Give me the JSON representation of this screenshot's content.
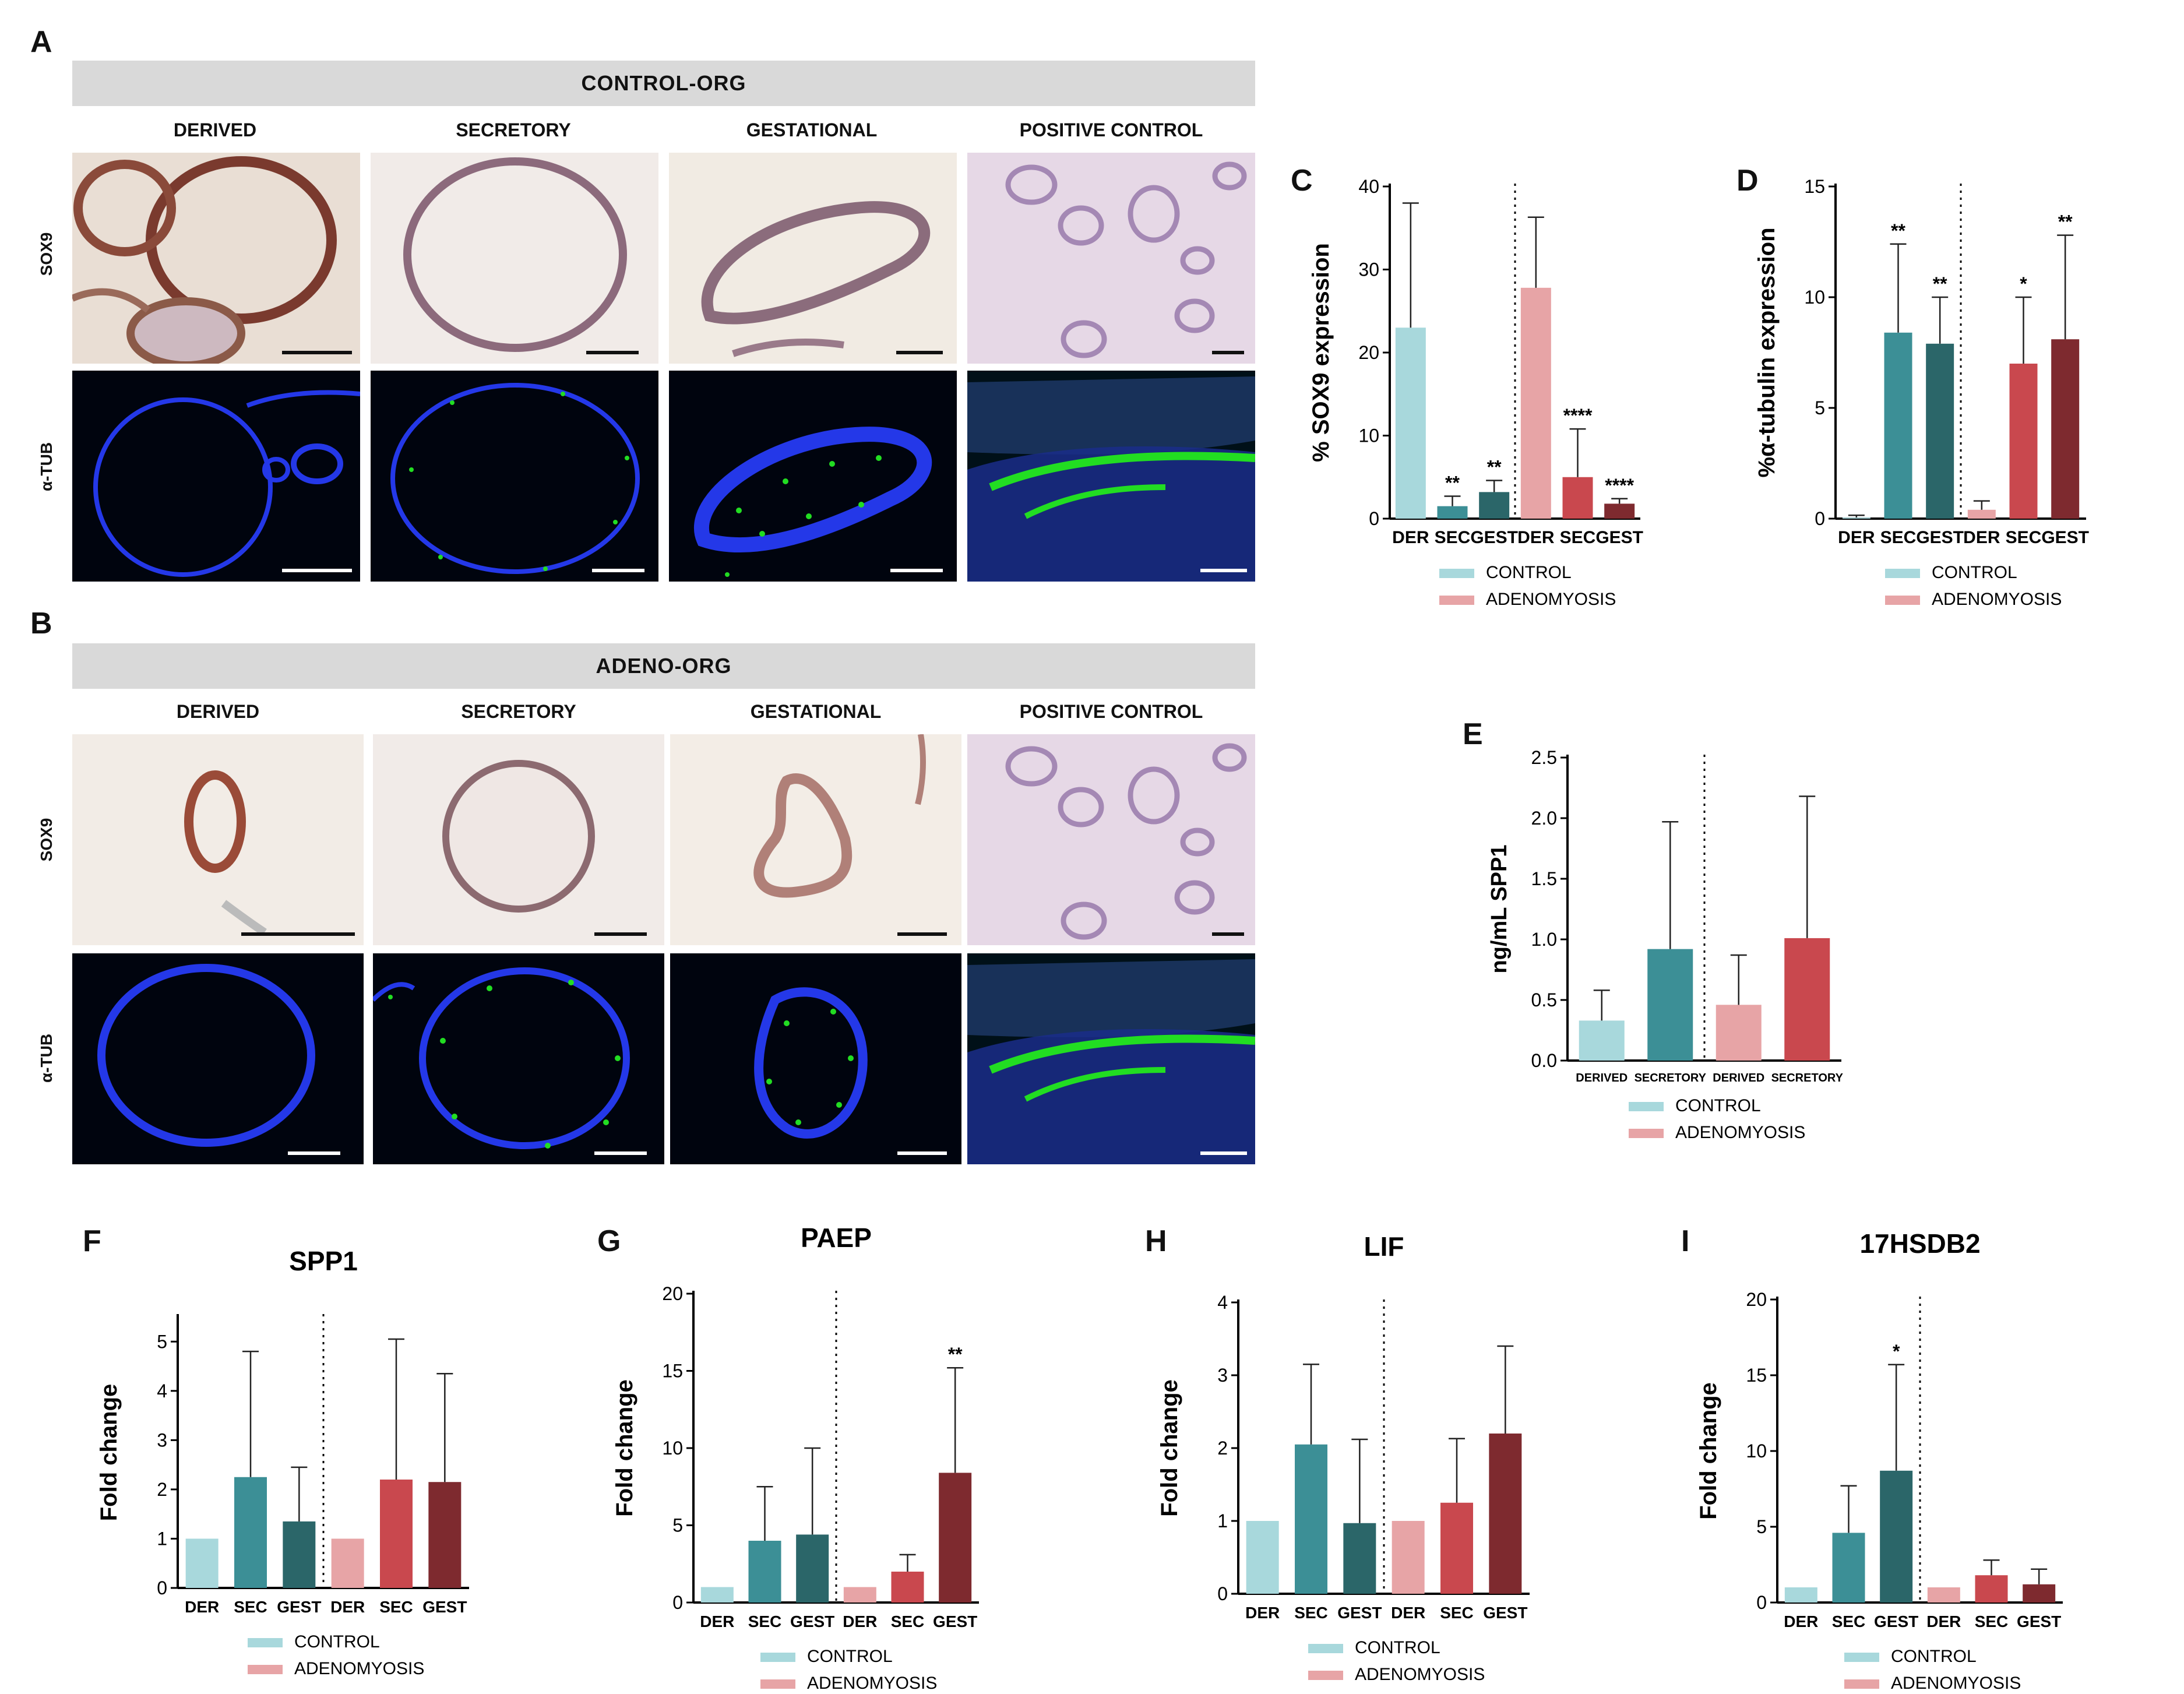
{
  "panels": {
    "A": "A",
    "B": "B",
    "C": "C",
    "D": "D",
    "E": "E",
    "F": "F",
    "G": "G",
    "H": "H",
    "I": "I"
  },
  "micro": {
    "control_banner": "CONTROL-ORG",
    "adeno_banner": "ADENO-ORG",
    "columns": [
      "DERIVED",
      "SECRETORY",
      "GESTATIONAL",
      "POSITIVE CONTROL"
    ],
    "row_sox9": "SOX9",
    "row_atub": "α-TUB"
  },
  "legend": {
    "control": "CONTROL",
    "adenomyosis": "ADENOMYOSIS"
  },
  "colors": {
    "control": [
      "#a8d8dc",
      "#3c8f96",
      "#2b6669"
    ],
    "adeno": [
      "#e7a4a6",
      "#c9484e",
      "#7e2a2f"
    ],
    "ihc_bg": "#e8ddd4",
    "if_bg": "#000814",
    "dapi": "#2233ee",
    "tub": "#22dd22"
  },
  "chart_data": [
    {
      "id": "C",
      "type": "bar",
      "categories": [
        "DER",
        "SEC",
        "GEST",
        "DER",
        "SEC",
        "GEST"
      ],
      "values": [
        23,
        1.5,
        3.2,
        27.8,
        5,
        1.8
      ],
      "errors": [
        15,
        1.2,
        1.4,
        8.5,
        5.8,
        0.6
      ],
      "sig": [
        "",
        "**",
        "**",
        "",
        "****",
        "****"
      ],
      "ylabel": "% SOX9 expression",
      "ylim": [
        0,
        40
      ],
      "yticks": [
        0,
        10,
        20,
        30,
        40
      ],
      "divider_after": 3
    },
    {
      "id": "D",
      "type": "bar",
      "categories": [
        "DER",
        "SEC",
        "GEST",
        "DER",
        "SEC",
        "GEST"
      ],
      "values": [
        0.05,
        8.4,
        7.9,
        0.4,
        7,
        8.1
      ],
      "errors": [
        0.1,
        4,
        2.1,
        0.4,
        3,
        4.7
      ],
      "sig": [
        "",
        "**",
        "**",
        "",
        "*",
        "**"
      ],
      "ylabel": "%α-tubulin expression",
      "ylim": [
        0,
        15
      ],
      "yticks": [
        0,
        5,
        10,
        15
      ],
      "divider_after": 3
    },
    {
      "id": "E",
      "type": "bar",
      "categories": [
        "DERIVED",
        "SECRETORY",
        "DERIVED",
        "SECRETORY"
      ],
      "values": [
        0.33,
        0.92,
        0.46,
        1.01
      ],
      "errors": [
        0.25,
        1.05,
        0.41,
        1.17
      ],
      "sig": [
        "",
        "",
        "",
        ""
      ],
      "ylabel": "ng/mL SPP1",
      "ylim": [
        0,
        2.5
      ],
      "yticks": [
        "0.0",
        "0.5",
        "1.0",
        "1.5",
        "2.0",
        "2.5"
      ],
      "divider_after": 2
    },
    {
      "id": "F",
      "type": "bar",
      "title": "SPP1",
      "categories": [
        "DER",
        "SEC",
        "GEST",
        "DER",
        "SEC",
        "GEST"
      ],
      "values": [
        1,
        2.25,
        1.35,
        1,
        2.2,
        2.15
      ],
      "errors": [
        0,
        2.55,
        1.1,
        0,
        2.85,
        2.2
      ],
      "sig": [
        "",
        "",
        "",
        "",
        "",
        ""
      ],
      "ylabel": "Fold change",
      "ylim": [
        0,
        5.5
      ],
      "yticks": [
        0,
        1,
        2,
        3,
        4,
        5
      ],
      "divider_after": 3
    },
    {
      "id": "G",
      "type": "bar",
      "title": "PAEP",
      "categories": [
        "DER",
        "SEC",
        "GEST",
        "DER",
        "SEC",
        "GEST"
      ],
      "values": [
        1,
        4,
        4.4,
        1,
        2,
        8.4
      ],
      "errors": [
        0,
        3.5,
        5.6,
        0,
        1.1,
        6.8
      ],
      "sig": [
        "",
        "",
        "",
        "",
        "",
        "**"
      ],
      "ylabel": "Fold change",
      "ylim": [
        0,
        20
      ],
      "yticks": [
        0,
        5,
        10,
        15,
        20
      ],
      "divider_after": 3
    },
    {
      "id": "H",
      "type": "bar",
      "title": "LIF",
      "categories": [
        "DER",
        "SEC",
        "GEST",
        "DER",
        "SEC",
        "GEST"
      ],
      "values": [
        1,
        2.05,
        0.97,
        1,
        1.25,
        2.2
      ],
      "errors": [
        0,
        1.1,
        1.15,
        0,
        0.88,
        1.2
      ],
      "sig": [
        "",
        "",
        "",
        "",
        "",
        ""
      ],
      "ylabel": "Fold change",
      "ylim": [
        0,
        4
      ],
      "yticks": [
        0,
        1,
        2,
        3,
        4
      ],
      "divider_after": 3
    },
    {
      "id": "I",
      "type": "bar",
      "title": "17HSDB2",
      "categories": [
        "DER",
        "SEC",
        "GEST",
        "DER",
        "SEC",
        "GEST"
      ],
      "values": [
        1,
        4.6,
        8.7,
        1,
        1.8,
        1.2
      ],
      "errors": [
        0,
        3.1,
        7,
        0,
        1,
        1
      ],
      "sig": [
        "",
        "",
        "*",
        "",
        "",
        ""
      ],
      "ylabel": "Fold change",
      "ylim": [
        0,
        20
      ],
      "yticks": [
        0,
        5,
        10,
        15,
        20
      ],
      "divider_after": 3
    }
  ]
}
